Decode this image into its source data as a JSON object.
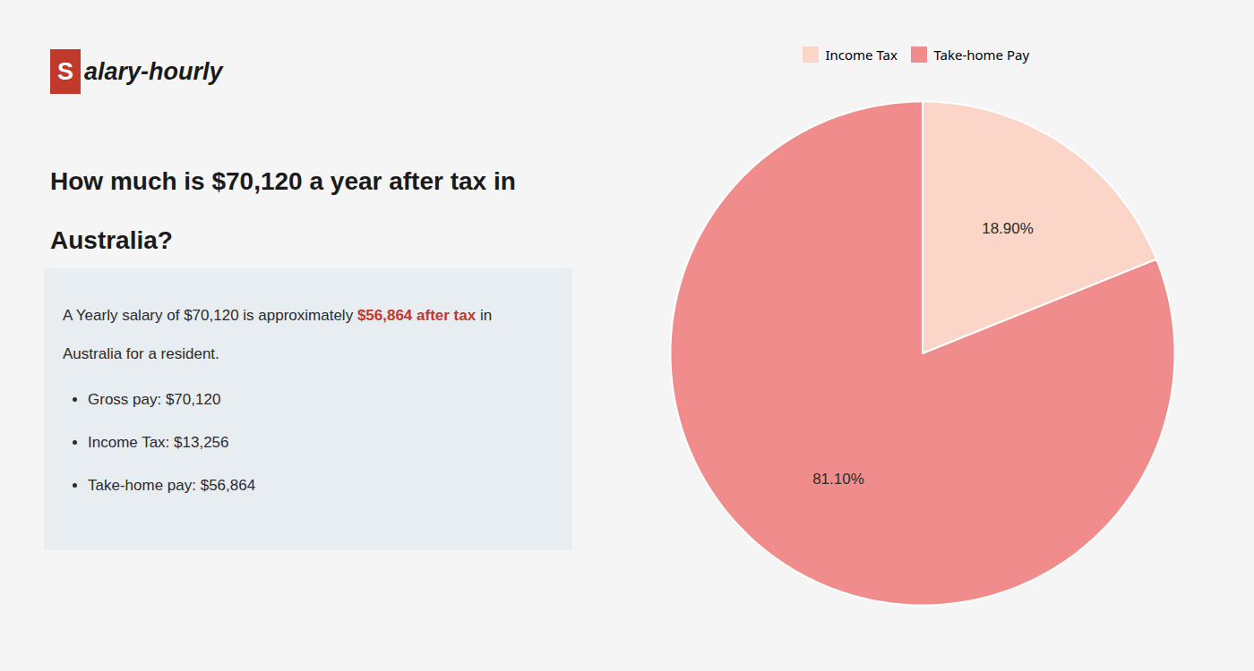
{
  "chart_data": {
    "type": "pie",
    "categories": [
      "Income Tax",
      "Take-home Pay"
    ],
    "values": [
      18.9,
      81.1
    ],
    "value_labels": [
      "18.90%",
      "81.10%"
    ],
    "colors": [
      "#fad5c8",
      "#f08c8c"
    ],
    "data_labels": true,
    "legend": "top",
    "logo": {
      "mark": "S",
      "rest": "alary-hourly",
      "color": "#c0392b"
    },
    "title_lines": [
      "How much is $70,120 a year after tax in",
      "Australia?"
    ],
    "summary": [
      {
        "text": "A Yearly salary of $70,120 is approximately "
      },
      {
        "text": "$56,864 after tax",
        "color": "#c0392b"
      },
      {
        "text": " in"
      }
    ],
    "summary_line2": "Australia for a resident.",
    "bullets": [
      "Gross pay: $70,120",
      "Income Tax: $13,256",
      "Take-home pay: $56,864"
    ]
  }
}
